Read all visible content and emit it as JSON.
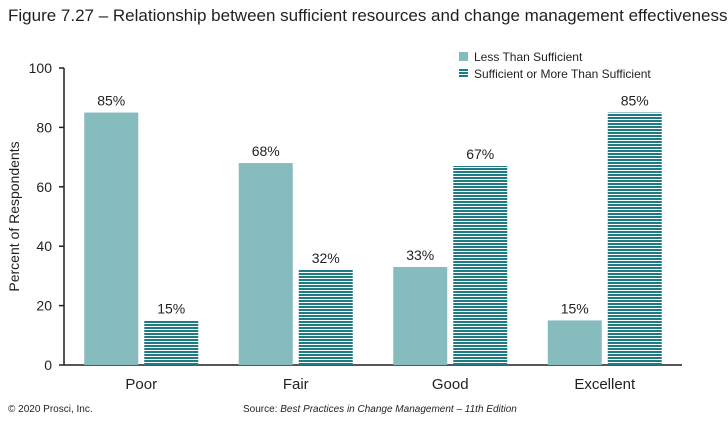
{
  "chart_data": {
    "type": "bar",
    "title": "Figure 7.27 – Relationship between sufficient resources and change management effectiveness",
    "xlabel": "",
    "ylabel": "Percent of Respondents",
    "ylim": [
      0,
      100
    ],
    "yticks": [
      0,
      20,
      40,
      60,
      80,
      100
    ],
    "grid": false,
    "legend_position": "top-right",
    "categories": [
      "Poor",
      "Fair",
      "Good",
      "Excellent"
    ],
    "series": [
      {
        "name": "Less Than Sufficient",
        "values": [
          85,
          68,
          33,
          15
        ],
        "labels": [
          "85%",
          "68%",
          "33%",
          "15%"
        ],
        "color": "#86bcbe",
        "pattern": "solid"
      },
      {
        "name": "Sufficient or More Than Sufficient",
        "values": [
          15,
          32,
          67,
          85
        ],
        "labels": [
          "15%",
          "32%",
          "67%",
          "85%"
        ],
        "color": "#1f7b82",
        "pattern": "horizontal-stripes"
      }
    ]
  },
  "footer": {
    "copyright": "© 2020 Prosci, Inc.",
    "source_prefix": "Source: ",
    "source_title": "Best Practices in Change Management – 11th Edition"
  }
}
